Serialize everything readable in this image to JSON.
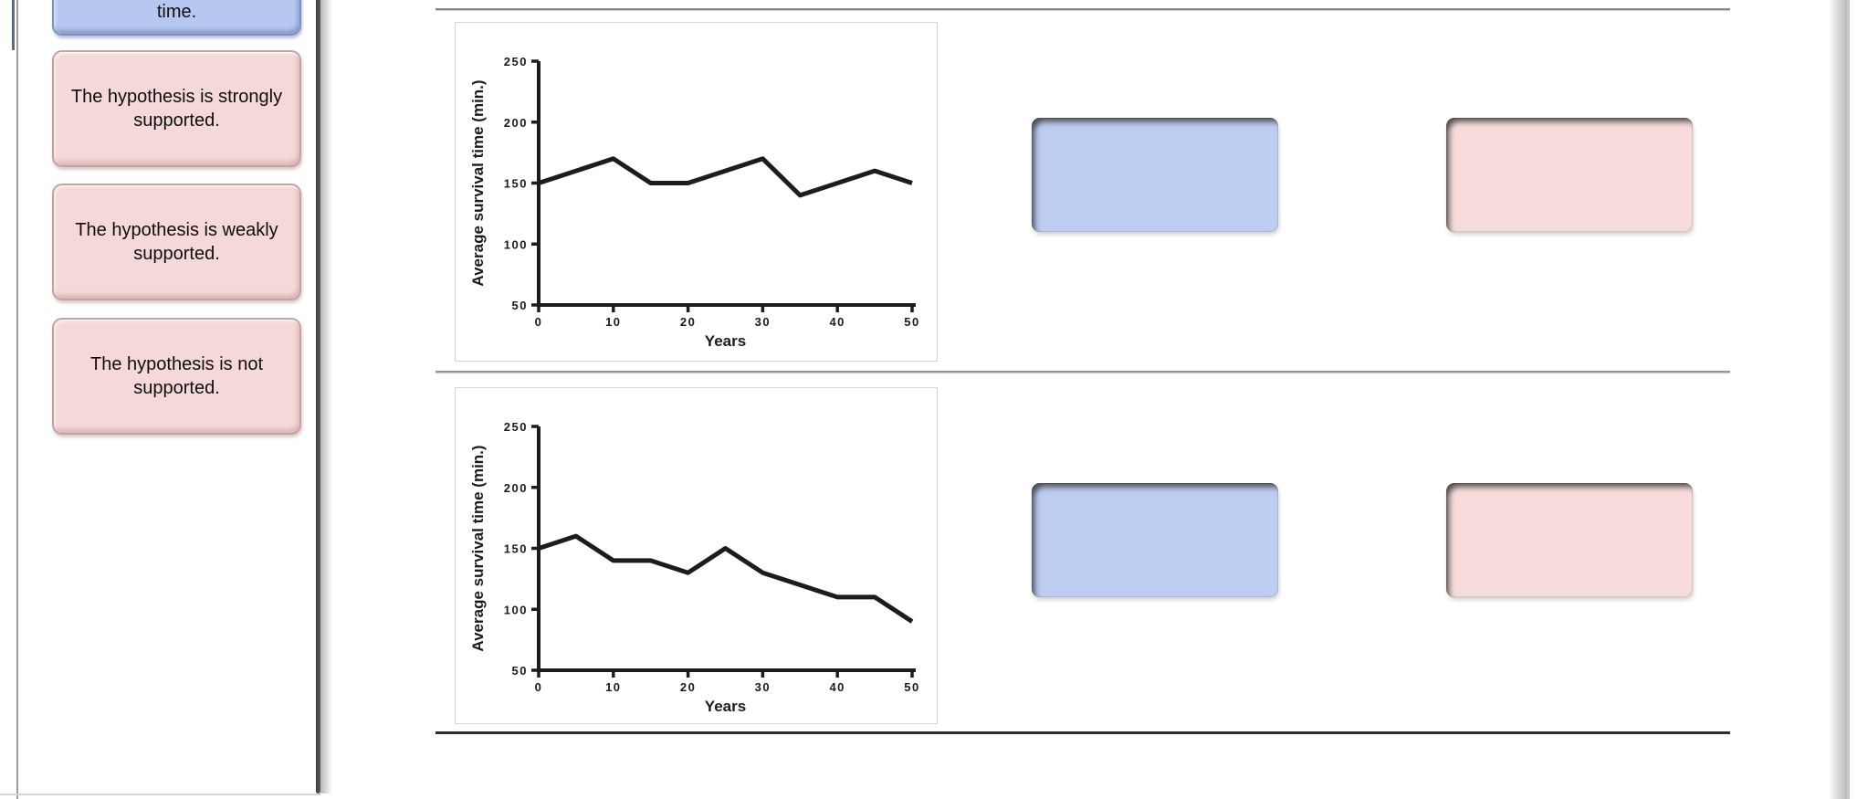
{
  "colors": {
    "blue_card": "#b6c8f0",
    "pink_card": "#f5d8d8",
    "blue_well": "#bdcdf2",
    "pink_well": "#f7dcdc",
    "chart_line": "#1c1c1c"
  },
  "choices_panel": {
    "cards": [
      {
        "label": "time.",
        "color": "blue"
      },
      {
        "label": "The hypothesis is strongly supported.",
        "color": "pink"
      },
      {
        "label": "The hypothesis is weakly supported.",
        "color": "pink"
      },
      {
        "label": "The hypothesis is not supported.",
        "color": "pink"
      }
    ]
  },
  "chart_data": [
    {
      "type": "line",
      "x": [
        0,
        10,
        15,
        20,
        30,
        35,
        45,
        50
      ],
      "values": [
        150,
        170,
        150,
        150,
        170,
        140,
        160,
        150
      ],
      "title": "",
      "xlabel": "Years",
      "ylabel": "Average survival time (min.)",
      "xlim": [
        0,
        50
      ],
      "ylim": [
        50,
        250
      ],
      "xticks": [
        0,
        10,
        20,
        30,
        40,
        50
      ],
      "yticks": [
        50,
        100,
        150,
        200,
        250
      ],
      "grid": false,
      "legend": "none"
    },
    {
      "type": "line",
      "x": [
        0,
        5,
        10,
        15,
        20,
        25,
        30,
        40,
        45,
        50
      ],
      "values": [
        150,
        160,
        140,
        140,
        130,
        150,
        130,
        110,
        110,
        90
      ],
      "title": "",
      "xlabel": "Years",
      "ylabel": "Average survival time (min.)",
      "xlim": [
        0,
        50
      ],
      "ylim": [
        50,
        250
      ],
      "xticks": [
        0,
        10,
        20,
        30,
        40,
        50
      ],
      "yticks": [
        50,
        100,
        150,
        200,
        250
      ],
      "grid": false,
      "legend": "none"
    }
  ]
}
